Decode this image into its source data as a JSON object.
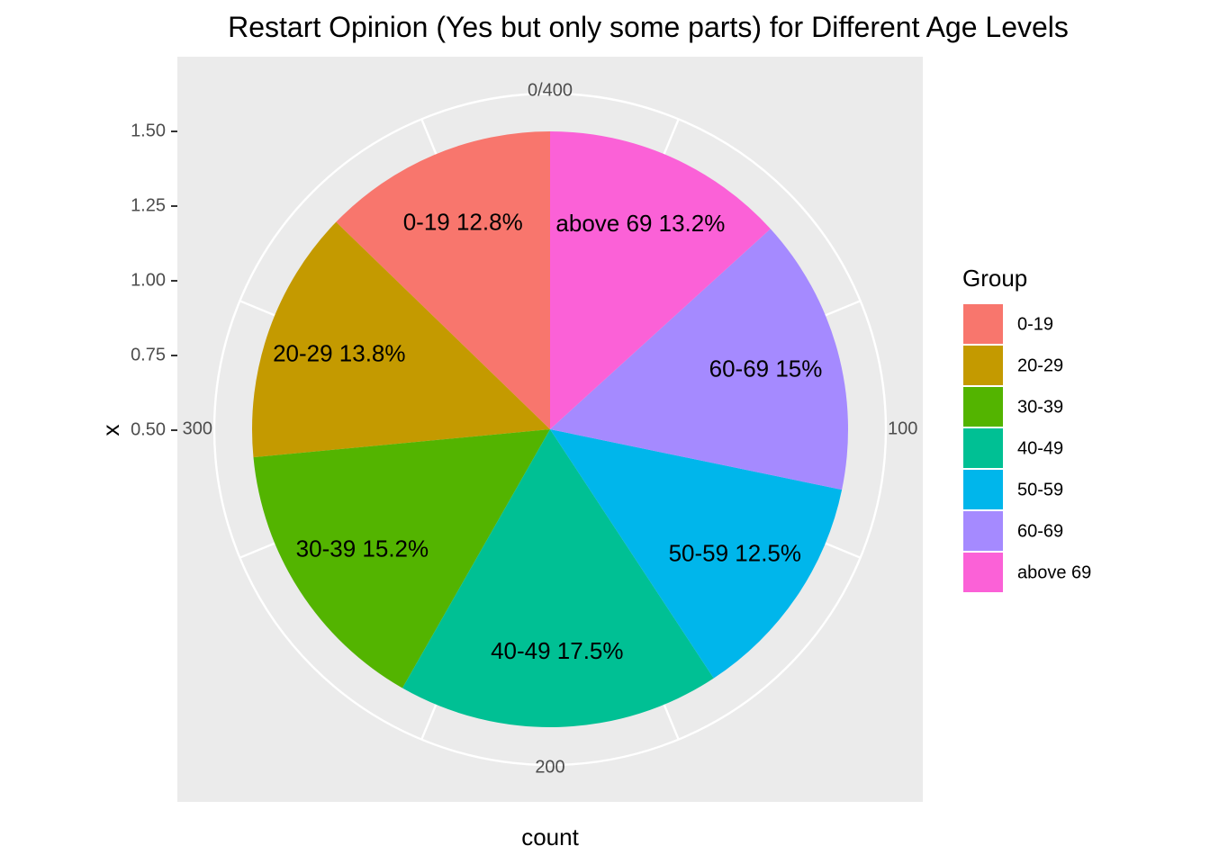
{
  "chart_data": {
    "type": "pie",
    "title": "Restart Opinion (Yes but only some parts) for Different Age Levels",
    "xlabel": "count",
    "ylabel": "x",
    "y_ticks": [
      "0.50",
      "0.75",
      "1.00",
      "1.25",
      "1.50"
    ],
    "theta_ticks": [
      "0/400",
      "100",
      "200",
      "300"
    ],
    "legend": {
      "title": "Group",
      "placement": "right",
      "entries": [
        "0-19",
        "20-29",
        "30-39",
        "40-49",
        "50-59",
        "60-69",
        "above 69"
      ]
    },
    "total": 400,
    "slices": [
      {
        "label": "0-19 12.8%",
        "legend": "0-19",
        "value": 51,
        "color": "#F8766D"
      },
      {
        "label": "20-29 13.8%",
        "legend": "20-29",
        "value": 55,
        "color": "#C49A00"
      },
      {
        "label": "30-39 15.2%",
        "legend": "30-39",
        "value": 61,
        "color": "#53B400"
      },
      {
        "label": "40-49 17.5%",
        "legend": "40-49",
        "value": 70,
        "color": "#00C094"
      },
      {
        "label": "50-59 12.5%",
        "legend": "50-59",
        "value": 50,
        "color": "#00B6EB"
      },
      {
        "label": "60-69 15%",
        "legend": "60-69",
        "value": 60,
        "color": "#A58AFF"
      },
      {
        "label": "above 69 13.2%",
        "legend": "above 69",
        "value": 53,
        "color": "#FB61D7"
      }
    ],
    "panel_background": "#EBEBEB",
    "grid_color": "#FFFFFF"
  }
}
